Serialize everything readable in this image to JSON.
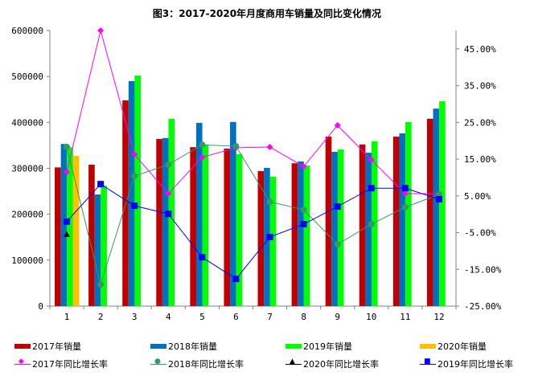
{
  "chart_data": {
    "type": "bar+line",
    "title": "图3：2017-2020年月度商用车销量及同比变化情况",
    "categories": [
      "1",
      "2",
      "3",
      "4",
      "5",
      "6",
      "7",
      "8",
      "9",
      "10",
      "11",
      "12"
    ],
    "y_left": {
      "lim": [
        0,
        600000
      ],
      "ticks": [
        "0",
        "100000",
        "200000",
        "300000",
        "400000",
        "500000",
        "600000"
      ]
    },
    "y_right": {
      "lim": [
        -25,
        50
      ],
      "ticks": [
        "-25.00%",
        "-15.00%",
        "-5.00%",
        "5.00%",
        "15.00%",
        "25.00%",
        "35.00%",
        "45.00%"
      ]
    },
    "bar_series": [
      {
        "name": "2017年销量",
        "color": "#C00000",
        "values": [
          302000,
          308000,
          448000,
          364000,
          346000,
          343000,
          294000,
          311000,
          369000,
          352000,
          369000,
          408000
        ]
      },
      {
        "name": "2018年销量",
        "color": "#0070C0",
        "values": [
          353000,
          243000,
          490000,
          366000,
          399000,
          401000,
          301000,
          315000,
          336000,
          334000,
          376000,
          430000
        ]
      },
      {
        "name": "2019年销量",
        "color": "#00FF00",
        "values": [
          346000,
          262000,
          502000,
          408000,
          352000,
          331000,
          282000,
          306000,
          341000,
          359000,
          401000,
          446000
        ]
      },
      {
        "name": "2020年销量",
        "color": "#FFC000",
        "values": [
          327000,
          null,
          null,
          null,
          null,
          null,
          null,
          null,
          null,
          null,
          null,
          null
        ]
      }
    ],
    "line_series": [
      {
        "name": "2017年同比增长率",
        "color": "#FF00FF",
        "marker": "diamond",
        "values": [
          11.5,
          50,
          16.3,
          5.6,
          15.5,
          18.1,
          18.3,
          13.0,
          24.2,
          14.8,
          5.6,
          5.6
        ]
      },
      {
        "name": "2018年同比增长率",
        "color": "#339966",
        "marker": "circle",
        "values": [
          18.3,
          -19.1,
          10.4,
          13.5,
          18.9,
          18.5,
          3.4,
          1.2,
          -8.2,
          -2.7,
          1.9,
          5.4
        ]
      },
      {
        "name": "2020年同比增长率",
        "color": "#000000",
        "marker": "triangle",
        "values": [
          -5.5,
          null,
          null,
          null,
          null,
          null,
          null,
          null,
          null,
          null,
          null,
          null
        ]
      },
      {
        "name": "2019年同比增长率",
        "color": "#0000FF",
        "marker": "square",
        "values": [
          -2.0,
          8.2,
          2.3,
          0.1,
          -11.7,
          -17.6,
          -6.2,
          -2.7,
          2.1,
          7.1,
          7.1,
          4.1
        ]
      }
    ],
    "legend": "bottom"
  }
}
